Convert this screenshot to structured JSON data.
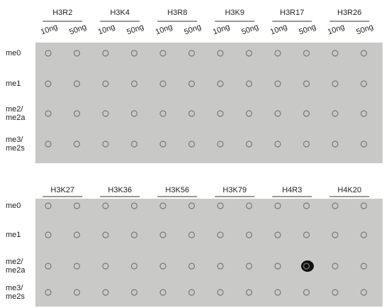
{
  "panels": [
    {
      "groups": [
        "H3R2",
        "H3K4",
        "H3R8",
        "H3K9",
        "H3R17",
        "H3R26"
      ],
      "concentrations": [
        "10ng",
        "50ng"
      ],
      "rows": [
        [
          "me0"
        ],
        [
          "me1"
        ],
        [
          "me2/",
          "me2a"
        ],
        [
          "me3/",
          "me2s"
        ]
      ]
    },
    {
      "groups": [
        "H3K27",
        "H3K36",
        "H3K56",
        "H3K79",
        "H4R3",
        "H4K20"
      ],
      "rows": [
        [
          "me0"
        ],
        [
          "me1"
        ],
        [
          "me2/",
          "me2a"
        ],
        [
          "me3/",
          "me2s"
        ]
      ]
    }
  ]
}
